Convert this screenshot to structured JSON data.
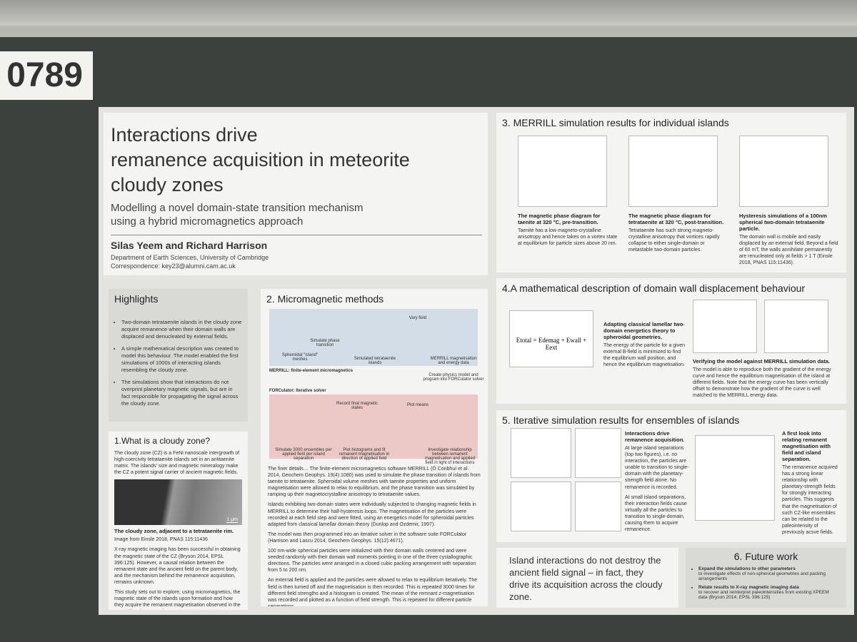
{
  "board_number": "0789",
  "header": {
    "title": [
      "Interactions drive",
      "remanence acquisition in meteorite",
      "cloudy zones"
    ],
    "subtitle": [
      "Modelling a novel domain-state transition mechanism",
      "using a hybrid micromagnetics approach"
    ],
    "authors": "Silas Yeem and Richard Harrison",
    "affiliation": "Department of Earth Sciences, University of Cambridge",
    "correspondence": "Correspondence: key23@alumni.cam.ac.uk"
  },
  "highlights": {
    "heading": "Highlights",
    "items": [
      "Two-domain tetrataenite islands in the cloudy zone acquire remanence when their domain walls are displaced and denucleated by external fields.",
      "A simple mathematical description was created to model this behaviour. The model enabled the first simulations of 1000s of interacting islands resembling the cloudy zone.",
      "The simulations show that interactions do not overprint planetary magnetic signals, but are in fact responsible for propagating the signal across the cloudy zone."
    ]
  },
  "cloudy_zone": {
    "heading": "1.What is a cloudy zone?",
    "intro": "The cloudy zone (CZ) is a FeNi nanoscale intergrowth of high-coercivity tetrataenite islands set in an antitaenite matrix. The islands' size and magnetic mineralogy make the CZ a potent signal carrier of ancient magnetic fields.",
    "scale": "1 μm",
    "caption_title": "The cloudy zone, adjacent to a tetrataenite rim.",
    "caption_source": "Image from Einsle 2018, PNAS 115:11436",
    "paragraphs": [
      "X-ray magnetic imaging has been successful in obtaining the magnetic state of the CZ (Bryson 2014, EPSL 396:125). However, a causal relation between the remanent state and the ancient field on the parent body, and the mechanism behind the remanence acquisition, remains unknown.",
      "This study sets out to explore, using micromagnetics, the magnetic state of the islands upon formation and how they acquire the remanent magnetisation observed in the magnetic microscopy images."
    ]
  },
  "methods": {
    "heading": "2. Micromagnetic methods",
    "labels": [
      "Simulate phase transition",
      "Spheroidal \"island\" meshes",
      "Simulated tetrataenite islands",
      "Vary field",
      "MERRILL magnetisation and energy data",
      "MERRILL: finite-element micromagnetics",
      "Create physics model and program into FORCulator solver",
      "FORCulator: Iterative solver",
      "Simulate 3000 ensembles per applied field per island separation",
      "Record final magnetic states",
      "Plot histograms and fit remanent magnetisation in direction of applied field",
      "Plot means",
      "Investigate relationship between remanent magnetisation and applied field in light of interactions"
    ],
    "paragraphs": [
      "The finer details… The finite-element micromagnetics software MERRILL (Ó Conbhuí et al. 2014, Geochem Geophys. 19(4):1080) was used to simulate the phase transition of islands from taenite to tetrataenite. Spheroidal volume meshes with taenite properties and uniform magnetisation were allowed to relax to equilibrium, and the phase transition was simulated by ramping up their magnetocrystalline anisotropy to tetrataenite values.",
      "Islands exhibiting two-domain states were individually subjected to changing magnetic fields in MERRILL to determine their half-hysteresis loops. The magnetisation of the particles were recorded at each field step and were fitted, using an energetics model for spheroidal particles adapted from classical lamellar domain theory (Dunlop and Ozdemir, 1997).",
      "The model was then programmed into an iterative solver in the software suite FORCulator (Harrison and Lascu 2014, Geochem Geophys. 15(12):4671).",
      "100 nm-wide spherical particles were initialized with their domain walls centered and were seeded randomly with their domain wall moments pointing in one of the three cystallographic directions. The particles were arranged in a closed cubic packing arrangement with separation from 5 to 200 nm.",
      "An external field is applied and the particles were allowed to relax to equilibrium iteratively. The field is then turned off and the magnetisation is then recorded. This is repeated 3000 times for different field strengths and a histogram is created. The mean of the remnant z-magnetisation was recorded and plotted as a function of field strength. This is repeated for different particle separations."
    ]
  },
  "section3": {
    "heading": "3. MERRILL simulation results for individual islands",
    "figures": [
      {
        "title": "The magnetic phase diagram for taenite at 320 °C, pre-transition.",
        "text": "Taenite has a low magneto-crystalline anisotropy and hence takes on a vortex state at equilibrium for particle sizes above 20 nm."
      },
      {
        "title": "The magnetic phase diagram for tetrataenite at 320 °C, post-transition.",
        "text": "Tetrataenite has such strong magneto-crystalline anisotropy that vortices rapidly collapse to either single-domain or metastable two-domain particles."
      },
      {
        "title": "Hysteresis simulations of a 100nm spherical two-domain tetrataenite particle.",
        "text": "The domain wall is mobile and easily displaced by an external field. Beyond a field of 60 mT, the walls annihilate permanently are renucleated only at fields > 1 T (Einsle 2018, PNAS 115:11436)."
      }
    ]
  },
  "section4": {
    "heading": "4.A mathematical description of domain wall displacement behaviour",
    "equation": "Etotal = Edemag + Ewall + Eext",
    "adapt_title": "Adapting classical lamellar two-domain energetics theory to spheroidal geometries.",
    "adapt_text": "The energy of the particle for a given external B-field is minimized to find the equilibrium wall position, and hence the equilibrium magnetisation.",
    "verify_title": "Verifying the model against MERRILL simulation data.",
    "verify_text": "The model is able to reproduce both the gradient of the energy curve and hence the equilibrium magnetisation of the island at different fields. Note that the energy curve has been vertically offset to demonstrate how the gradient of the curve is well matched to the MERRILL energy data."
  },
  "section5": {
    "heading": "5. Iterative simulation results for ensembles of islands",
    "left_title": "Interactions drive remanence acquisition.",
    "left_text": [
      "At large island separations (top two figures), i.e. no interaction, the particles are unable to transition to single-domain with the planetary-strength field alone. No remanence is recorded.",
      "At small island separations, their interaction fields cause virtually all the particles to transition to single-domain, causing them to acquire remanence."
    ],
    "right_title": "A first look into relating remanent magnetisation with field and island separation.",
    "right_text": "The remanence acquired has a strong linear relationship with planetary-strength fields for strongly interacting particles. This suggests that the magnetisation of such CZ-like ensembles can be related to the paleointensity of previously acsve fields."
  },
  "conclusion": "Island interactions do not destroy the ancient field signal – in fact, they drive its acquisition across the cloudy zone.",
  "future": {
    "heading": "6. Future work",
    "items": [
      {
        "title": "Expand the simulations to other parameters",
        "text": "to investigate effects of non-spherical geometries and packing arrangements"
      },
      {
        "title": "Relate results to X-ray magnetic imaging data",
        "text": "to recover and reinterpret paleointensities from existing XPEEM data (Bryson 2014, EPSL 396:125)"
      }
    ]
  }
}
